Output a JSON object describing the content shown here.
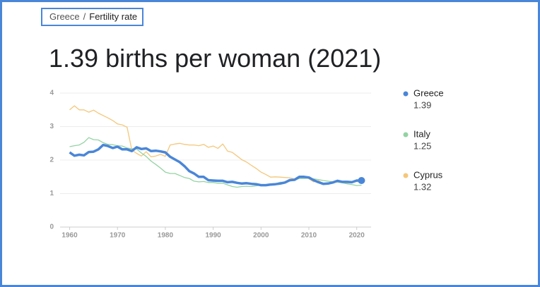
{
  "breadcrumb": {
    "country": "Greece",
    "separator": "/",
    "page": "Fertility rate"
  },
  "chart_data": {
    "type": "line",
    "title": "1.39 births per woman (2021)",
    "x": [
      1960,
      1961,
      1962,
      1963,
      1964,
      1965,
      1966,
      1967,
      1968,
      1969,
      1970,
      1971,
      1972,
      1973,
      1974,
      1975,
      1976,
      1977,
      1978,
      1979,
      1980,
      1981,
      1982,
      1983,
      1984,
      1985,
      1986,
      1987,
      1988,
      1989,
      1990,
      1991,
      1992,
      1993,
      1994,
      1995,
      1996,
      1997,
      1998,
      1999,
      2000,
      2001,
      2002,
      2003,
      2004,
      2005,
      2006,
      2007,
      2008,
      2009,
      2010,
      2011,
      2012,
      2013,
      2014,
      2015,
      2016,
      2017,
      2018,
      2019,
      2020,
      2021
    ],
    "series": [
      {
        "name": "Cyprus",
        "color": "#f4c77a",
        "values": [
          3.5,
          3.62,
          3.5,
          3.5,
          3.43,
          3.49,
          3.4,
          3.33,
          3.26,
          3.18,
          3.08,
          3.05,
          2.98,
          2.3,
          2.2,
          2.12,
          2.25,
          2.1,
          2.12,
          2.17,
          2.11,
          2.45,
          2.48,
          2.5,
          2.47,
          2.45,
          2.45,
          2.43,
          2.47,
          2.38,
          2.42,
          2.35,
          2.48,
          2.27,
          2.23,
          2.12,
          2.01,
          1.94,
          1.84,
          1.75,
          1.64,
          1.57,
          1.49,
          1.5,
          1.49,
          1.48,
          1.47,
          1.44,
          1.46,
          1.51,
          1.44,
          1.35,
          1.39,
          1.3,
          1.31,
          1.32,
          1.37,
          1.32,
          1.32,
          1.33,
          1.36,
          1.32
        ]
      },
      {
        "name": "Italy",
        "color": "#93d3a2",
        "values": [
          2.4,
          2.43,
          2.45,
          2.53,
          2.67,
          2.61,
          2.6,
          2.52,
          2.47,
          2.46,
          2.43,
          2.42,
          2.36,
          2.34,
          2.33,
          2.21,
          2.11,
          1.97,
          1.87,
          1.76,
          1.64,
          1.6,
          1.6,
          1.54,
          1.48,
          1.45,
          1.37,
          1.35,
          1.36,
          1.33,
          1.33,
          1.31,
          1.31,
          1.26,
          1.21,
          1.19,
          1.21,
          1.22,
          1.21,
          1.23,
          1.26,
          1.25,
          1.27,
          1.29,
          1.34,
          1.34,
          1.37,
          1.4,
          1.45,
          1.45,
          1.46,
          1.44,
          1.42,
          1.39,
          1.37,
          1.35,
          1.34,
          1.32,
          1.29,
          1.27,
          1.24,
          1.25
        ]
      },
      {
        "name": "Greece",
        "color": "#4a86d8",
        "values": [
          2.23,
          2.13,
          2.16,
          2.14,
          2.24,
          2.25,
          2.32,
          2.45,
          2.42,
          2.36,
          2.4,
          2.32,
          2.32,
          2.27,
          2.38,
          2.33,
          2.35,
          2.27,
          2.28,
          2.26,
          2.23,
          2.1,
          2.02,
          1.94,
          1.82,
          1.67,
          1.6,
          1.5,
          1.5,
          1.4,
          1.39,
          1.38,
          1.38,
          1.34,
          1.35,
          1.32,
          1.3,
          1.31,
          1.29,
          1.28,
          1.25,
          1.25,
          1.27,
          1.28,
          1.3,
          1.33,
          1.4,
          1.41,
          1.5,
          1.5,
          1.48,
          1.4,
          1.34,
          1.29,
          1.3,
          1.33,
          1.38,
          1.35,
          1.35,
          1.34,
          1.39,
          1.39
        ]
      }
    ],
    "xlim": [
      1958,
      2023
    ],
    "xticks": [
      1960,
      1970,
      1980,
      1990,
      2000,
      2010,
      2020
    ],
    "ylim": [
      0,
      4
    ],
    "yticks": [
      0,
      1,
      2,
      3,
      4
    ],
    "grid": true
  }
}
